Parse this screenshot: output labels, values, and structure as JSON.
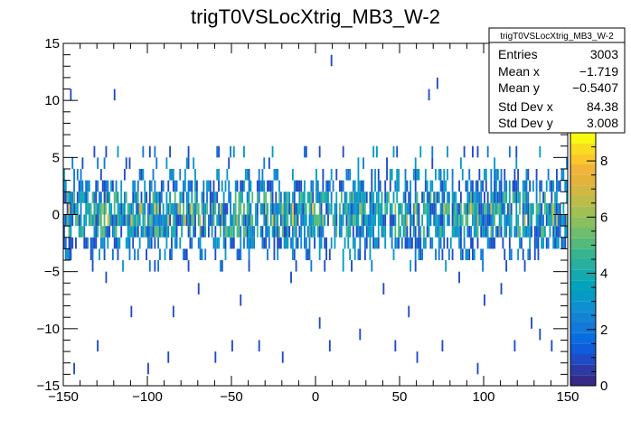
{
  "chart_data": {
    "type": "heatmap",
    "title": "trigT0VSLocXtrig_MB3_W-2",
    "xlabel": "",
    "ylabel": "",
    "xlim": [
      -150,
      150
    ],
    "ylim": [
      -15,
      15
    ],
    "x_ticks": [
      {
        "value": -150,
        "label": "−150"
      },
      {
        "value": -100,
        "label": "−100"
      },
      {
        "value": -50,
        "label": "−50"
      },
      {
        "value": 0,
        "label": "0"
      },
      {
        "value": 50,
        "label": "50"
      },
      {
        "value": 100,
        "label": "100"
      },
      {
        "value": 150,
        "label": "150"
      }
    ],
    "y_ticks": [
      {
        "value": -15,
        "label": "−15"
      },
      {
        "value": -10,
        "label": "−10"
      },
      {
        "value": -5,
        "label": "−5"
      },
      {
        "value": 0,
        "label": "0"
      },
      {
        "value": 5,
        "label": "5"
      },
      {
        "value": 10,
        "label": "10"
      },
      {
        "value": 15,
        "label": "15"
      }
    ],
    "z_range": [
      0,
      9
    ],
    "z_ticks": [
      {
        "value": 0,
        "label": "0"
      },
      {
        "value": 2,
        "label": "2"
      },
      {
        "value": 4,
        "label": "4"
      },
      {
        "value": 6,
        "label": "6"
      },
      {
        "value": 8,
        "label": "8"
      }
    ],
    "bin_width_x": 1,
    "bin_height_y": 1,
    "palette": [
      "#352a87",
      "#2d3aa6",
      "#1f4bc5",
      "#0f5cdd",
      "#0a6ddf",
      "#1179d8",
      "#1384d4",
      "#0f90d2",
      "#069ac5",
      "#04a3bc",
      "#13a9ae",
      "#27afa0",
      "#38b48e",
      "#53b97c",
      "#6fbd6e",
      "#89bf5f",
      "#a2bf54",
      "#bbbc49",
      "#d1b743",
      "#e3b33b",
      "#f2b53a",
      "#fbc82c",
      "#f8dd1e",
      "#f9fb0e"
    ],
    "stats": {
      "name": "trigT0VSLocXtrig_MB3_W-2",
      "rows": [
        {
          "label": "Entries",
          "value": "3003"
        },
        {
          "label": "Mean x",
          "value": "−1.719"
        },
        {
          "label": "Mean y",
          "value": "−0.5407"
        },
        {
          "label": "Std Dev x",
          "value": "84.38"
        },
        {
          "label": "Std Dev y",
          "value": "3.008"
        }
      ]
    },
    "entries": 3003,
    "mean_x": -1.719,
    "mean_y": -0.5407,
    "std_x": 84.38,
    "std_y": 3.008,
    "outlier_bins": [
      {
        "x": 9,
        "y": 13,
        "z": 1
      },
      {
        "x": -146,
        "y": 10,
        "z": 1
      },
      {
        "x": -120,
        "y": 10,
        "z": 1
      },
      {
        "x": 72,
        "y": 11,
        "z": 1
      },
      {
        "x": 67,
        "y": 10,
        "z": 1
      },
      {
        "x": -144,
        "y": -14,
        "z": 1
      },
      {
        "x": -130,
        "y": -12,
        "z": 1
      },
      {
        "x": -100,
        "y": -14,
        "z": 1
      },
      {
        "x": -88,
        "y": -13,
        "z": 1
      },
      {
        "x": -60,
        "y": -13,
        "z": 1
      },
      {
        "x": -50,
        "y": -12,
        "z": 1
      },
      {
        "x": -34,
        "y": -12,
        "z": 1
      },
      {
        "x": -20,
        "y": -13,
        "z": 1
      },
      {
        "x": 8,
        "y": -12,
        "z": 1
      },
      {
        "x": 26,
        "y": -11,
        "z": 1
      },
      {
        "x": 47,
        "y": -12,
        "z": 1
      },
      {
        "x": 60,
        "y": -13,
        "z": 1
      },
      {
        "x": 75,
        "y": -12,
        "z": 1
      },
      {
        "x": 96,
        "y": -14,
        "z": 1
      },
      {
        "x": 118,
        "y": -12,
        "z": 1
      },
      {
        "x": 133,
        "y": -11,
        "z": 1
      },
      {
        "x": 140,
        "y": -12,
        "z": 1
      },
      {
        "x": -110,
        "y": -9,
        "z": 1
      },
      {
        "x": -85,
        "y": -9,
        "z": 1
      },
      {
        "x": -45,
        "y": -8,
        "z": 1
      },
      {
        "x": 2,
        "y": -10,
        "z": 1
      },
      {
        "x": 55,
        "y": -9,
        "z": 1
      },
      {
        "x": 100,
        "y": -8,
        "z": 1
      },
      {
        "x": 128,
        "y": -10,
        "z": 1
      },
      {
        "x": -125,
        "y": -6,
        "z": 1
      },
      {
        "x": -70,
        "y": -7,
        "z": 1
      },
      {
        "x": -15,
        "y": -6,
        "z": 1
      },
      {
        "x": 40,
        "y": -7,
        "z": 1
      },
      {
        "x": 85,
        "y": -6,
        "z": 1
      },
      {
        "x": 110,
        "y": -7,
        "z": 1
      }
    ]
  }
}
